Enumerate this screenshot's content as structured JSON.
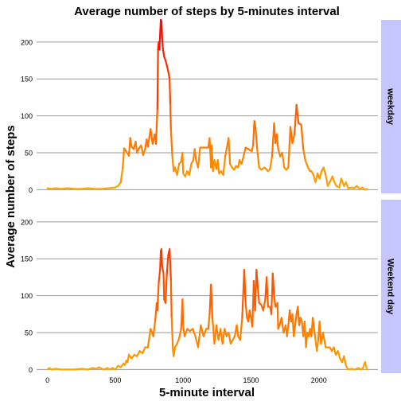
{
  "chart_data": {
    "type": "line",
    "title": "Average number of steps by 5-minutes interval",
    "xlabel": "5-minute interval",
    "ylabel": "Average number of steps",
    "xlim": [
      -80,
      2435
    ],
    "ylim": [
      -5,
      230
    ],
    "x_ticks": [
      0,
      500,
      1000,
      1500,
      2000
    ],
    "x_tick_labels": [
      "0",
      "500",
      "1000",
      "1500",
      "2000"
    ],
    "y_ticks": [
      0,
      50,
      100,
      150,
      200
    ],
    "y_tick_labels": [
      "0",
      "50",
      "100",
      "150",
      "200"
    ],
    "grid": true,
    "line_color_scale": {
      "low": "#ffa500",
      "high": "#ff0000",
      "min": 0,
      "max": 230
    },
    "strip_color": "#c6c6ff",
    "panels": [
      {
        "label": "weekday",
        "points": [
          [
            0,
            2
          ],
          [
            30,
            1
          ],
          [
            60,
            2
          ],
          [
            100,
            1
          ],
          [
            150,
            2
          ],
          [
            200,
            1
          ],
          [
            250,
            1
          ],
          [
            300,
            2
          ],
          [
            350,
            1
          ],
          [
            400,
            1
          ],
          [
            450,
            2
          ],
          [
            500,
            3
          ],
          [
            520,
            5
          ],
          [
            540,
            10
          ],
          [
            555,
            30
          ],
          [
            565,
            56
          ],
          [
            580,
            52
          ],
          [
            600,
            46
          ],
          [
            610,
            70
          ],
          [
            620,
            58
          ],
          [
            635,
            55
          ],
          [
            650,
            65
          ],
          [
            660,
            50
          ],
          [
            675,
            56
          ],
          [
            690,
            60
          ],
          [
            705,
            47
          ],
          [
            720,
            55
          ],
          [
            730,
            68
          ],
          [
            740,
            58
          ],
          [
            760,
            82
          ],
          [
            775,
            62
          ],
          [
            790,
            75
          ],
          [
            800,
            62
          ],
          [
            810,
            110
          ],
          [
            815,
            190
          ],
          [
            820,
            200
          ],
          [
            825,
            190
          ],
          [
            835,
            230
          ],
          [
            840,
            228
          ],
          [
            845,
            205
          ],
          [
            850,
            192
          ],
          [
            860,
            180
          ],
          [
            870,
            175
          ],
          [
            880,
            168
          ],
          [
            890,
            160
          ],
          [
            900,
            150
          ],
          [
            905,
            115
          ],
          [
            910,
            80
          ],
          [
            920,
            45
          ],
          [
            930,
            25
          ],
          [
            940,
            30
          ],
          [
            955,
            20
          ],
          [
            970,
            35
          ],
          [
            985,
            38
          ],
          [
            995,
            50
          ],
          [
            1000,
            22
          ],
          [
            1015,
            18
          ],
          [
            1030,
            25
          ],
          [
            1045,
            20
          ],
          [
            1060,
            35
          ],
          [
            1075,
            40
          ],
          [
            1085,
            55
          ],
          [
            1095,
            40
          ],
          [
            1110,
            30
          ],
          [
            1125,
            57
          ],
          [
            1155,
            57
          ],
          [
            1185,
            57
          ],
          [
            1195,
            70
          ],
          [
            1205,
            30
          ],
          [
            1210,
            60
          ],
          [
            1220,
            25
          ],
          [
            1230,
            40
          ],
          [
            1245,
            28
          ],
          [
            1255,
            40
          ],
          [
            1265,
            22
          ],
          [
            1280,
            25
          ],
          [
            1295,
            20
          ],
          [
            1310,
            45
          ],
          [
            1320,
            55
          ],
          [
            1335,
            70
          ],
          [
            1345,
            35
          ],
          [
            1360,
            30
          ],
          [
            1375,
            27
          ],
          [
            1390,
            32
          ],
          [
            1405,
            30
          ],
          [
            1415,
            40
          ],
          [
            1430,
            35
          ],
          [
            1445,
            45
          ],
          [
            1460,
            57
          ],
          [
            1480,
            55
          ],
          [
            1505,
            52
          ],
          [
            1515,
            60
          ],
          [
            1525,
            93
          ],
          [
            1535,
            80
          ],
          [
            1545,
            55
          ],
          [
            1560,
            30
          ],
          [
            1575,
            27
          ],
          [
            1600,
            30
          ],
          [
            1625,
            25
          ],
          [
            1640,
            28
          ],
          [
            1655,
            45
          ],
          [
            1670,
            90
          ],
          [
            1680,
            63
          ],
          [
            1690,
            75
          ],
          [
            1700,
            55
          ],
          [
            1715,
            45
          ],
          [
            1730,
            50
          ],
          [
            1745,
            30
          ],
          [
            1760,
            27
          ],
          [
            1775,
            30
          ],
          [
            1790,
            85
          ],
          [
            1805,
            63
          ],
          [
            1820,
            75
          ],
          [
            1835,
            115
          ],
          [
            1850,
            90
          ],
          [
            1870,
            88
          ],
          [
            1885,
            55
          ],
          [
            1900,
            40
          ],
          [
            1920,
            30
          ],
          [
            1935,
            25
          ],
          [
            1945,
            25
          ],
          [
            1960,
            20
          ],
          [
            1975,
            10
          ],
          [
            1990,
            22
          ],
          [
            2005,
            15
          ],
          [
            2020,
            25
          ],
          [
            2035,
            30
          ],
          [
            2050,
            20
          ],
          [
            2065,
            5
          ],
          [
            2080,
            10
          ],
          [
            2100,
            18
          ],
          [
            2115,
            10
          ],
          [
            2130,
            5
          ],
          [
            2150,
            3
          ],
          [
            2165,
            15
          ],
          [
            2185,
            5
          ],
          [
            2200,
            10
          ],
          [
            2215,
            2
          ],
          [
            2240,
            3
          ],
          [
            2260,
            2
          ],
          [
            2280,
            5
          ],
          [
            2300,
            1
          ],
          [
            2320,
            3
          ],
          [
            2340,
            0
          ],
          [
            2355,
            1
          ]
        ]
      },
      {
        "label": "Weekend day",
        "points": [
          [
            0,
            0
          ],
          [
            15,
            2
          ],
          [
            30,
            0
          ],
          [
            60,
            1
          ],
          [
            100,
            0
          ],
          [
            150,
            0
          ],
          [
            200,
            0
          ],
          [
            250,
            1
          ],
          [
            300,
            0
          ],
          [
            330,
            2
          ],
          [
            360,
            1
          ],
          [
            380,
            3
          ],
          [
            400,
            1
          ],
          [
            420,
            0
          ],
          [
            440,
            2
          ],
          [
            460,
            0
          ],
          [
            480,
            2
          ],
          [
            500,
            0
          ],
          [
            520,
            5
          ],
          [
            540,
            3
          ],
          [
            560,
            8
          ],
          [
            570,
            6
          ],
          [
            580,
            12
          ],
          [
            590,
            10
          ],
          [
            600,
            20
          ],
          [
            620,
            15
          ],
          [
            640,
            20
          ],
          [
            660,
            18
          ],
          [
            680,
            25
          ],
          [
            700,
            22
          ],
          [
            720,
            30
          ],
          [
            740,
            30
          ],
          [
            760,
            55
          ],
          [
            780,
            45
          ],
          [
            795,
            68
          ],
          [
            805,
            90
          ],
          [
            810,
            80
          ],
          [
            820,
            118
          ],
          [
            830,
            135
          ],
          [
            835,
            160
          ],
          [
            840,
            163
          ],
          [
            845,
            140
          ],
          [
            855,
            130
          ],
          [
            860,
            95
          ],
          [
            870,
            90
          ],
          [
            880,
            130
          ],
          [
            890,
            155
          ],
          [
            900,
            163
          ],
          [
            910,
            120
          ],
          [
            915,
            70
          ],
          [
            925,
            25
          ],
          [
            930,
            18
          ],
          [
            940,
            30
          ],
          [
            955,
            35
          ],
          [
            970,
            42
          ],
          [
            985,
            55
          ],
          [
            995,
            95
          ],
          [
            1000,
            60
          ],
          [
            1010,
            45
          ],
          [
            1030,
            55
          ],
          [
            1050,
            52
          ],
          [
            1070,
            55
          ],
          [
            1090,
            45
          ],
          [
            1110,
            30
          ],
          [
            1130,
            60
          ],
          [
            1150,
            45
          ],
          [
            1170,
            55
          ],
          [
            1185,
            55
          ],
          [
            1195,
            75
          ],
          [
            1205,
            115
          ],
          [
            1215,
            70
          ],
          [
            1220,
            60
          ],
          [
            1230,
            35
          ],
          [
            1245,
            60
          ],
          [
            1260,
            40
          ],
          [
            1275,
            55
          ],
          [
            1290,
            35
          ],
          [
            1305,
            55
          ],
          [
            1320,
            45
          ],
          [
            1335,
            50
          ],
          [
            1350,
            35
          ],
          [
            1365,
            40
          ],
          [
            1380,
            45
          ],
          [
            1395,
            60
          ],
          [
            1405,
            45
          ],
          [
            1420,
            40
          ],
          [
            1435,
            70
          ],
          [
            1450,
            135
          ],
          [
            1460,
            90
          ],
          [
            1470,
            70
          ],
          [
            1480,
            65
          ],
          [
            1490,
            80
          ],
          [
            1500,
            70
          ],
          [
            1510,
            58
          ],
          [
            1520,
            120
          ],
          [
            1530,
            80
          ],
          [
            1540,
            135
          ],
          [
            1550,
            110
          ],
          [
            1560,
            90
          ],
          [
            1575,
            88
          ],
          [
            1590,
            80
          ],
          [
            1605,
            95
          ],
          [
            1615,
            125
          ],
          [
            1625,
            85
          ],
          [
            1640,
            85
          ],
          [
            1650,
            75
          ],
          [
            1660,
            130
          ],
          [
            1670,
            100
          ],
          [
            1680,
            85
          ],
          [
            1695,
            90
          ],
          [
            1700,
            55
          ],
          [
            1710,
            60
          ],
          [
            1725,
            70
          ],
          [
            1740,
            50
          ],
          [
            1755,
            60
          ],
          [
            1765,
            45
          ],
          [
            1775,
            60
          ],
          [
            1785,
            80
          ],
          [
            1795,
            65
          ],
          [
            1805,
            75
          ],
          [
            1815,
            45
          ],
          [
            1825,
            60
          ],
          [
            1835,
            75
          ],
          [
            1845,
            85
          ],
          [
            1855,
            60
          ],
          [
            1865,
            70
          ],
          [
            1875,
            65
          ],
          [
            1885,
            45
          ],
          [
            1895,
            65
          ],
          [
            1905,
            30
          ],
          [
            1915,
            50
          ],
          [
            1925,
            45
          ],
          [
            1935,
            55
          ],
          [
            1945,
            45
          ],
          [
            1955,
            70
          ],
          [
            1965,
            55
          ],
          [
            1975,
            40
          ],
          [
            1985,
            25
          ],
          [
            1995,
            40
          ],
          [
            2005,
            65
          ],
          [
            2015,
            35
          ],
          [
            2030,
            50
          ],
          [
            2040,
            40
          ],
          [
            2050,
            30
          ],
          [
            2065,
            30
          ],
          [
            2080,
            30
          ],
          [
            2095,
            25
          ],
          [
            2110,
            30
          ],
          [
            2125,
            20
          ],
          [
            2140,
            25
          ],
          [
            2155,
            15
          ],
          [
            2170,
            10
          ],
          [
            2185,
            18
          ],
          [
            2200,
            5
          ],
          [
            2215,
            0
          ],
          [
            2240,
            1
          ],
          [
            2265,
            0
          ],
          [
            2290,
            2
          ],
          [
            2310,
            0
          ],
          [
            2325,
            2
          ],
          [
            2340,
            10
          ],
          [
            2350,
            3
          ],
          [
            2355,
            0
          ]
        ]
      }
    ]
  }
}
